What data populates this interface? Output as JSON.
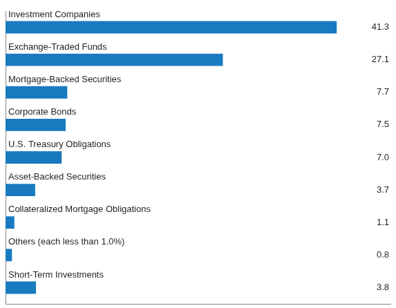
{
  "chart_data": {
    "type": "bar",
    "orientation": "horizontal",
    "categories": [
      "Investment Companies",
      "Exchange-Traded Funds",
      "Mortgage-Backed Securities",
      "Corporate Bonds",
      "U.S. Treasury Obligations",
      "Asset-Backed Securities",
      "Collateralized Mortgage Obligations",
      "Others (each less than 1.0%)",
      "Short-Term Investments"
    ],
    "values": [
      41.3,
      27.1,
      7.7,
      7.5,
      7.0,
      3.7,
      1.1,
      0.8,
      3.8
    ],
    "value_labels": [
      "41.3",
      "27.1",
      "7.7",
      "7.5",
      "7.0",
      "3.7",
      "1.1",
      "0.8",
      "3.8"
    ],
    "color": "#1a7abf",
    "xlim": [
      0,
      48
    ],
    "xticks": [],
    "tick_labels": false,
    "data_labels": true,
    "grid": false
  }
}
